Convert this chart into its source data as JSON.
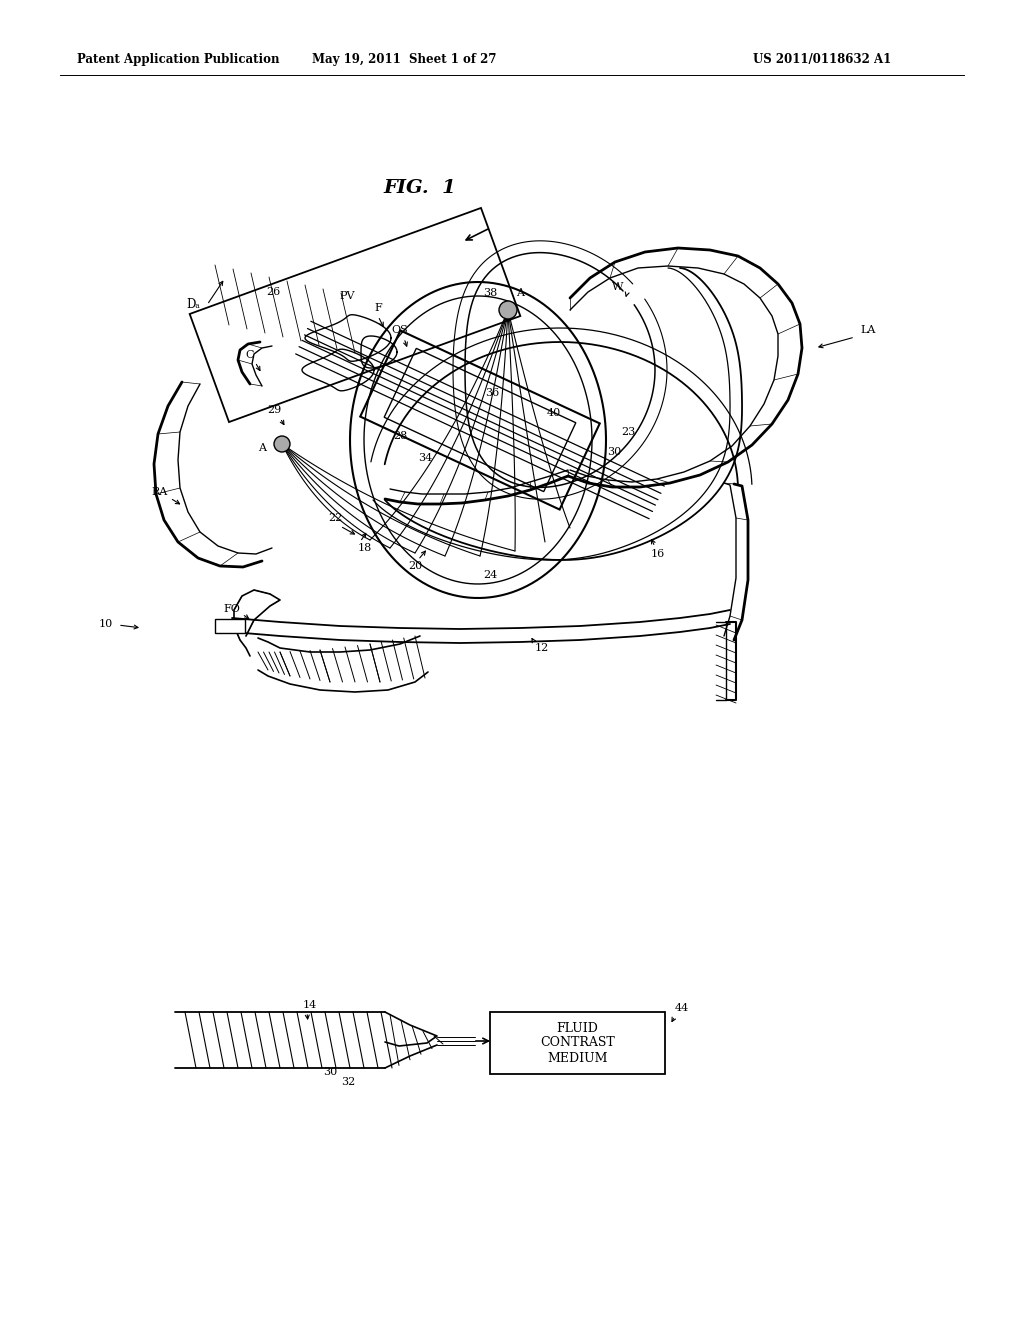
{
  "background": "#ffffff",
  "line_color": "#000000",
  "header_left": "Patent Application Publication",
  "header_mid": "May 19, 2011  Sheet 1 of 27",
  "header_right": "US 2011/0118632 A1",
  "fig_title": "FIG.  1",
  "fluid_box_text": "FLUID\nCONTRAST\nMEDIUM"
}
